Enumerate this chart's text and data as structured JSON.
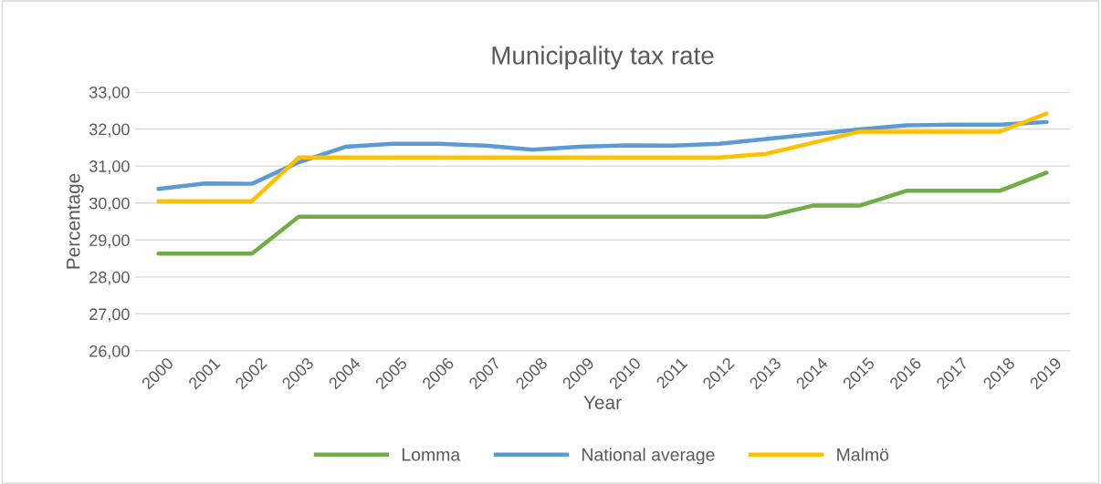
{
  "chart_data": {
    "type": "line",
    "title": "Municipality tax rate",
    "xlabel": "Year",
    "ylabel": "Percentage",
    "categories": [
      "2000",
      "2001",
      "2002",
      "2003",
      "2004",
      "2005",
      "2006",
      "2007",
      "2008",
      "2009",
      "2010",
      "2011",
      "2012",
      "2013",
      "2014",
      "2015",
      "2016",
      "2017",
      "2018",
      "2019"
    ],
    "series": [
      {
        "name": "Lomma",
        "color": "#70ad47",
        "values": [
          28.63,
          28.63,
          28.63,
          29.63,
          29.63,
          29.63,
          29.63,
          29.63,
          29.63,
          29.63,
          29.63,
          29.63,
          29.63,
          29.63,
          29.93,
          29.93,
          30.33,
          30.33,
          30.33,
          30.82
        ]
      },
      {
        "name": "National average",
        "color": "#5b9bd5",
        "values": [
          30.38,
          30.53,
          30.52,
          31.1,
          31.52,
          31.6,
          31.6,
          31.55,
          31.44,
          31.52,
          31.56,
          31.55,
          31.6,
          31.73,
          31.86,
          31.99,
          32.1,
          32.12,
          32.12,
          32.19
        ]
      },
      {
        "name": "Malmö",
        "color": "#ffc000",
        "values": [
          30.05,
          30.05,
          30.05,
          31.23,
          31.23,
          31.23,
          31.23,
          31.23,
          31.23,
          31.23,
          31.23,
          31.23,
          31.23,
          31.33,
          31.63,
          31.93,
          31.93,
          31.93,
          31.93,
          32.42
        ]
      }
    ],
    "ylim": [
      26,
      33
    ],
    "yticks": [
      {
        "value": 26,
        "label": "26,00"
      },
      {
        "value": 27,
        "label": "27,00"
      },
      {
        "value": 28,
        "label": "28,00"
      },
      {
        "value": 29,
        "label": "29,00"
      },
      {
        "value": 30,
        "label": "30,00"
      },
      {
        "value": 31,
        "label": "31,00"
      },
      {
        "value": 32,
        "label": "32,00"
      },
      {
        "value": 33,
        "label": "33,00"
      }
    ],
    "grid": "y",
    "legend": "bottom",
    "marker": "none",
    "line_style": "solid"
  }
}
